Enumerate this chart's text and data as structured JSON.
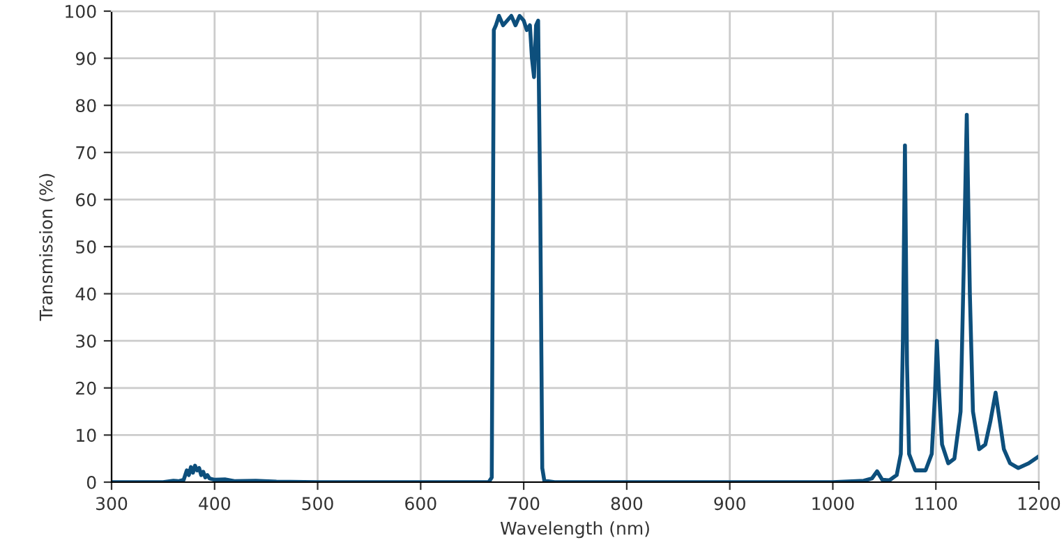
{
  "chart_data": {
    "type": "line",
    "xlabel": "Wavelength (nm)",
    "ylabel": "Transmission (%)",
    "x": [
      300,
      350,
      360,
      365,
      370,
      373,
      375,
      377,
      379,
      381,
      383,
      385,
      387,
      389,
      391,
      393,
      395,
      400,
      410,
      420,
      440,
      460,
      500,
      600,
      660,
      666,
      669,
      671,
      673,
      676,
      680,
      684,
      688,
      692,
      696,
      700,
      703,
      706,
      708,
      710,
      712,
      714,
      716,
      718,
      720,
      730,
      800,
      900,
      1000,
      1030,
      1038,
      1043,
      1048,
      1055,
      1062,
      1066,
      1068,
      1070,
      1072,
      1074,
      1080,
      1090,
      1096,
      1099,
      1101,
      1103,
      1106,
      1112,
      1118,
      1124,
      1127,
      1130,
      1133,
      1136,
      1142,
      1148,
      1153,
      1158,
      1162,
      1166,
      1172,
      1180,
      1190,
      1200
    ],
    "series": [
      {
        "color": "#0d4f7c",
        "values": [
          0,
          0,
          0.3,
          0.2,
          0.5,
          2.5,
          1.5,
          3.2,
          2,
          3.5,
          2.5,
          3,
          1.5,
          2.2,
          1,
          1.5,
          0.8,
          0.5,
          0.6,
          0.2,
          0.3,
          0.1,
          0,
          0,
          0,
          0,
          1,
          96,
          97,
          99,
          97,
          98,
          99,
          97,
          99,
          98,
          96,
          97,
          90,
          86,
          97,
          98,
          60,
          3,
          0.3,
          0,
          0,
          0,
          0,
          0.3,
          0.8,
          2.3,
          0.5,
          0.4,
          1.5,
          6,
          30,
          71.5,
          25,
          6,
          2.5,
          2.5,
          6,
          18,
          30,
          20,
          8,
          4,
          5,
          15,
          45,
          78,
          40,
          15,
          7,
          8,
          13,
          19,
          13,
          7,
          4,
          3,
          4,
          5.5
        ]
      }
    ],
    "xlim": [
      300,
      1200
    ],
    "ylim": [
      0,
      100
    ],
    "xticks": [
      300,
      400,
      500,
      600,
      700,
      800,
      900,
      1000,
      1100,
      1200
    ],
    "yticks": [
      0,
      10,
      20,
      30,
      40,
      50,
      60,
      70,
      80,
      90,
      100
    ],
    "grid": true,
    "legend": false
  }
}
